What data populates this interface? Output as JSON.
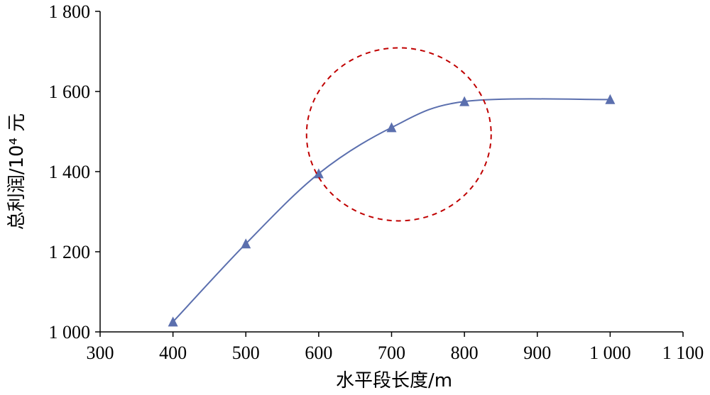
{
  "chart_data": {
    "type": "line",
    "title": "",
    "xlabel": "水平段长度/m",
    "ylabel": "总利润/10⁴ 元",
    "xlim": [
      300,
      1100
    ],
    "ylim": [
      1000,
      1800
    ],
    "x_ticks": [
      300,
      400,
      500,
      600,
      700,
      800,
      900,
      1000,
      1100
    ],
    "x_tick_labels": [
      "300",
      "400",
      "500",
      "600",
      "700",
      "800",
      "900",
      "1 000",
      "1 100"
    ],
    "y_ticks": [
      1000,
      1200,
      1400,
      1600,
      1800
    ],
    "y_tick_labels": [
      "1 000",
      "1 200",
      "1 400",
      "1 600",
      "1 800"
    ],
    "grid": false,
    "legend": "none",
    "series": [
      {
        "x": [
          400,
          500,
          600,
          700,
          800,
          1000
        ],
        "y": [
          1025,
          1220,
          1395,
          1510,
          1575,
          1580
        ],
        "color": "#5b6fae",
        "marker": "triangle"
      }
    ],
    "annotations": [
      {
        "type": "dashed-circle",
        "center_x": 710,
        "center_y": 1493,
        "color": "#c00000"
      }
    ]
  }
}
